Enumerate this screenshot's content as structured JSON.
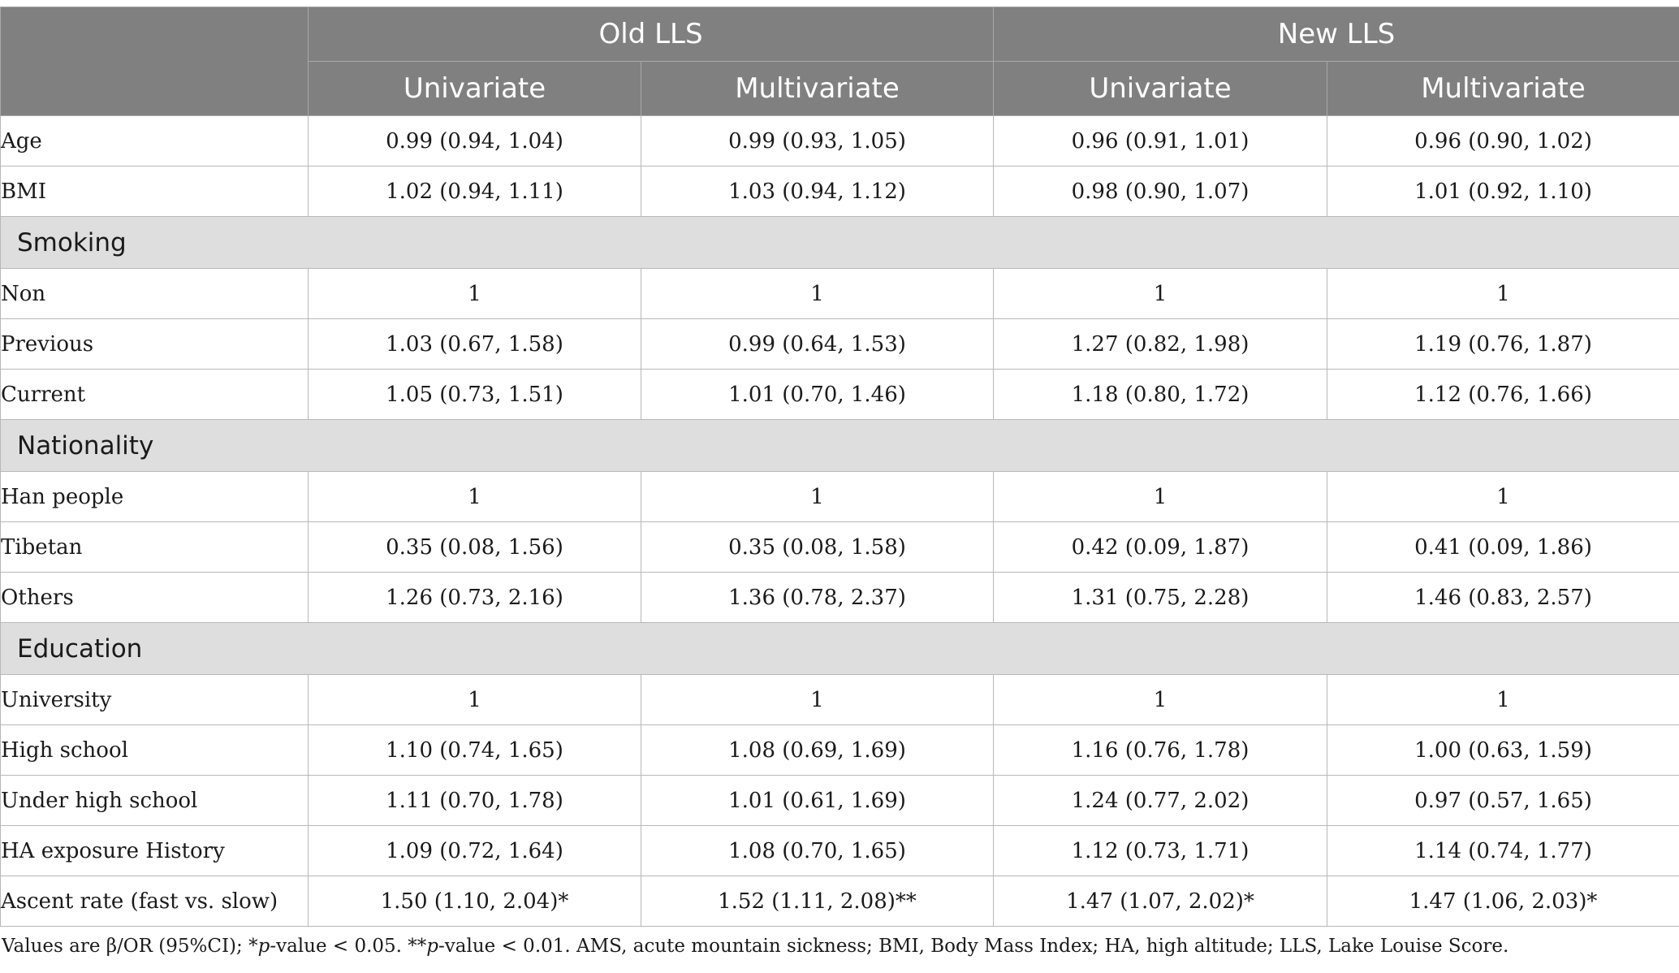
{
  "header": {
    "group_old": "Old LLS",
    "group_new": "New LLS",
    "sub_uni_old": "Univariate",
    "sub_multi_old": "Multivariate",
    "sub_uni_new": "Univariate",
    "sub_multi_new": "Multivariate"
  },
  "rows": {
    "age": {
      "label": "Age",
      "v1": "0.99 (0.94, 1.04)",
      "v2": "0.99 (0.93, 1.05)",
      "v3": "0.96 (0.91, 1.01)",
      "v4": "0.96 (0.90, 1.02)"
    },
    "bmi": {
      "label": "BMI",
      "v1": "1.02 (0.94, 1.11)",
      "v2": "1.03 (0.94, 1.12)",
      "v3": "0.98 (0.90, 1.07)",
      "v4": "1.01 (0.92, 1.10)"
    },
    "smoking": "Smoking",
    "non": {
      "label": "Non",
      "v1": "1",
      "v2": "1",
      "v3": "1",
      "v4": "1"
    },
    "previous": {
      "label": "Previous",
      "v1": "1.03 (0.67, 1.58)",
      "v2": "0.99 (0.64, 1.53)",
      "v3": "1.27 (0.82, 1.98)",
      "v4": "1.19 (0.76, 1.87)"
    },
    "current": {
      "label": "Current",
      "v1": "1.05 (0.73, 1.51)",
      "v2": "1.01 (0.70, 1.46)",
      "v3": "1.18 (0.80, 1.72)",
      "v4": "1.12 (0.76, 1.66)"
    },
    "nationality": "Nationality",
    "han": {
      "label": "Han people",
      "v1": "1",
      "v2": "1",
      "v3": "1",
      "v4": "1"
    },
    "tibetan": {
      "label": "Tibetan",
      "v1": "0.35 (0.08, 1.56)",
      "v2": "0.35 (0.08, 1.58)",
      "v3": "0.42 (0.09, 1.87)",
      "v4": "0.41 (0.09, 1.86)"
    },
    "others": {
      "label": "Others",
      "v1": "1.26 (0.73, 2.16)",
      "v2": "1.36 (0.78, 2.37)",
      "v3": "1.31 (0.75, 2.28)",
      "v4": "1.46 (0.83, 2.57)"
    },
    "education": "Education",
    "university": {
      "label": "University",
      "v1": "1",
      "v2": "1",
      "v3": "1",
      "v4": "1"
    },
    "highschool": {
      "label": "High school",
      "v1": "1.10 (0.74, 1.65)",
      "v2": "1.08 (0.69, 1.69)",
      "v3": "1.16 (0.76, 1.78)",
      "v4": "1.00 (0.63, 1.59)"
    },
    "underhigh": {
      "label": "Under high school",
      "v1": "1.11 (0.70, 1.78)",
      "v2": "1.01 (0.61, 1.69)",
      "v3": "1.24 (0.77, 2.02)",
      "v4": "0.97 (0.57, 1.65)"
    },
    "ha": {
      "label": "HA exposure History",
      "v1": "1.09 (0.72, 1.64)",
      "v2": "1.08 (0.70, 1.65)",
      "v3": "1.12 (0.73, 1.71)",
      "v4": "1.14 (0.74, 1.77)"
    },
    "ascent": {
      "label": "Ascent rate (fast vs. slow)",
      "v1": "1.50 (1.10, 2.04)*",
      "v2": "1.52 (1.11, 2.08)**",
      "v3": "1.47 (1.07, 2.02)*",
      "v4": "1.47 (1.06, 2.03)*"
    }
  },
  "footnote": {
    "part1": "Values are β/OR (95%CI); *",
    "p1": "p",
    "part2": "-value < 0.05. **",
    "p2": "p",
    "part3": "-value < 0.01. AMS, acute mountain sickness; BMI, Body Mass Index; HA, high altitude; LLS, Lake Louise Score."
  }
}
